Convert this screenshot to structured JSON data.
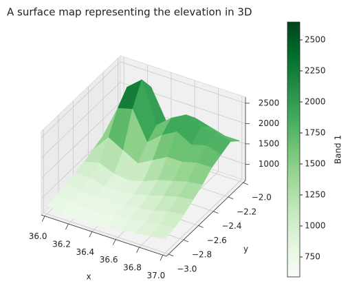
{
  "chart_data": {
    "type": "surface",
    "title": "A surface map representing the elevation in 3D",
    "x_label": "x",
    "y_label": "y",
    "colorbar_label": "Band 1",
    "x": [
      36.0,
      36.125,
      36.25,
      36.375,
      36.5,
      36.625,
      36.75,
      36.875,
      37.0
    ],
    "y": [
      -3.0,
      -2.875,
      -2.75,
      -2.625,
      -2.5,
      -2.375,
      -2.25,
      -2.125,
      -2.0
    ],
    "z": [
      [
        800,
        750,
        700,
        700,
        750,
        800,
        850,
        900,
        950
      ],
      [
        850,
        800,
        750,
        750,
        800,
        850,
        900,
        950,
        1000
      ],
      [
        900,
        850,
        800,
        800,
        850,
        900,
        950,
        1050,
        1100
      ],
      [
        950,
        950,
        850,
        850,
        900,
        1000,
        1100,
        1200,
        1250
      ],
      [
        1000,
        1100,
        950,
        900,
        1000,
        1150,
        1250,
        1350,
        1400
      ],
      [
        1100,
        1500,
        1300,
        1100,
        1300,
        1500,
        1500,
        1600,
        1600
      ],
      [
        1200,
        2000,
        2100,
        1400,
        1700,
        1900,
        1700,
        1800,
        1700
      ],
      [
        1300,
        2300,
        2600,
        1600,
        1900,
        2100,
        1900,
        1900,
        1800
      ],
      [
        1300,
        2000,
        2200,
        1500,
        1700,
        1800,
        1700,
        1600,
        1600
      ]
    ],
    "colormap": [
      "#f7fcf5",
      "#e5f5e0",
      "#c7e9c0",
      "#a1d99b",
      "#74c476",
      "#41ab5d",
      "#238b45",
      "#006d2c",
      "#00441b"
    ],
    "xlim": [
      35.97,
      37.03
    ],
    "ylim": [
      -3.03,
      -1.97
    ],
    "zlim": [
      600,
      2650
    ],
    "clim": [
      589,
      2644
    ],
    "xticks": [
      {
        "value": 36.0,
        "label": "36.0"
      },
      36.2,
      36.4,
      36.6,
      36.8,
      {
        "value": 37.0,
        "label": "37.0"
      }
    ],
    "yticks": [
      {
        "value": -3.0,
        "label": "−3.0"
      },
      {
        "value": -2.8,
        "label": "−2.8"
      },
      {
        "value": -2.6,
        "label": "−2.6"
      },
      {
        "value": -2.4,
        "label": "−2.4"
      },
      {
        "value": -2.2,
        "label": "−2.2"
      },
      {
        "value": -2.0,
        "label": "−2.0"
      }
    ],
    "zticks": [
      1000,
      1500,
      2000,
      2500
    ],
    "cticks": [
      750,
      1000,
      1250,
      1500,
      1750,
      2000,
      2250,
      2500
    ],
    "grid": true
  }
}
